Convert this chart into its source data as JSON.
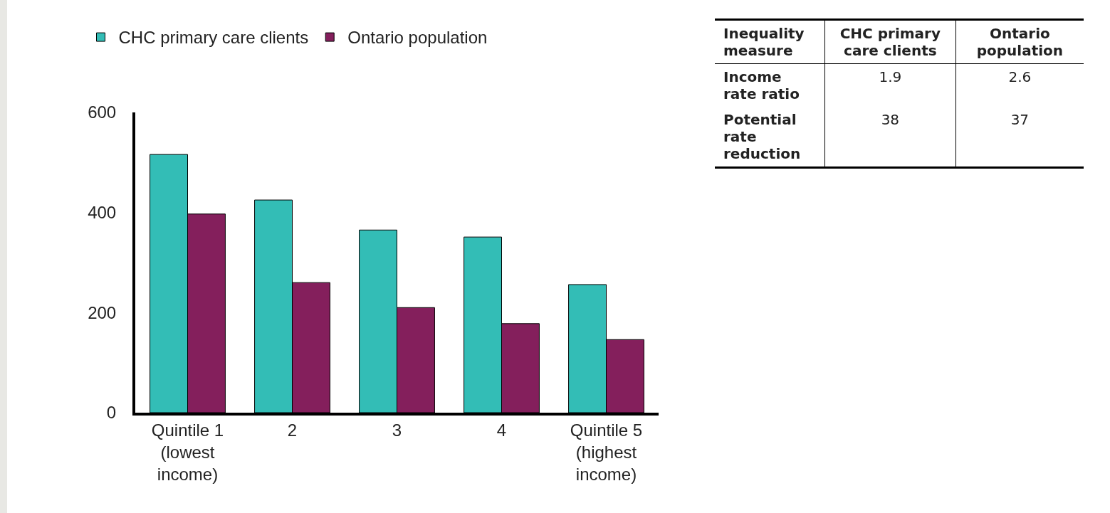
{
  "chart_data": [
    {
      "type": "bar",
      "categories": [
        "Quintile 1\n(lowest\nincome)",
        "2",
        "3",
        "4",
        "Quintile 5\n(highest\nincome)"
      ],
      "series": [
        {
          "name": "CHC primary care clients",
          "color": "#33bdb6",
          "values": [
            516,
            425,
            365,
            351,
            256
          ]
        },
        {
          "name": "Ontario population",
          "color": "#841f5c",
          "values": [
            397,
            260,
            210,
            178,
            146
          ]
        }
      ],
      "ylim": [
        0,
        600
      ],
      "yticks": [
        0,
        200,
        400,
        600
      ],
      "grid": false,
      "legend": "top left"
    },
    {
      "type": "other",
      "xlabel": "Inequality measure",
      "categories": [
        "Income rate ratio",
        "Potential rate reduction"
      ],
      "series": [
        {
          "name": "CHC primary care clients",
          "values": [
            1.9,
            38
          ]
        },
        {
          "name": "Ontario population",
          "values": [
            2.6,
            37
          ]
        }
      ],
      "data_labels": true
    }
  ]
}
